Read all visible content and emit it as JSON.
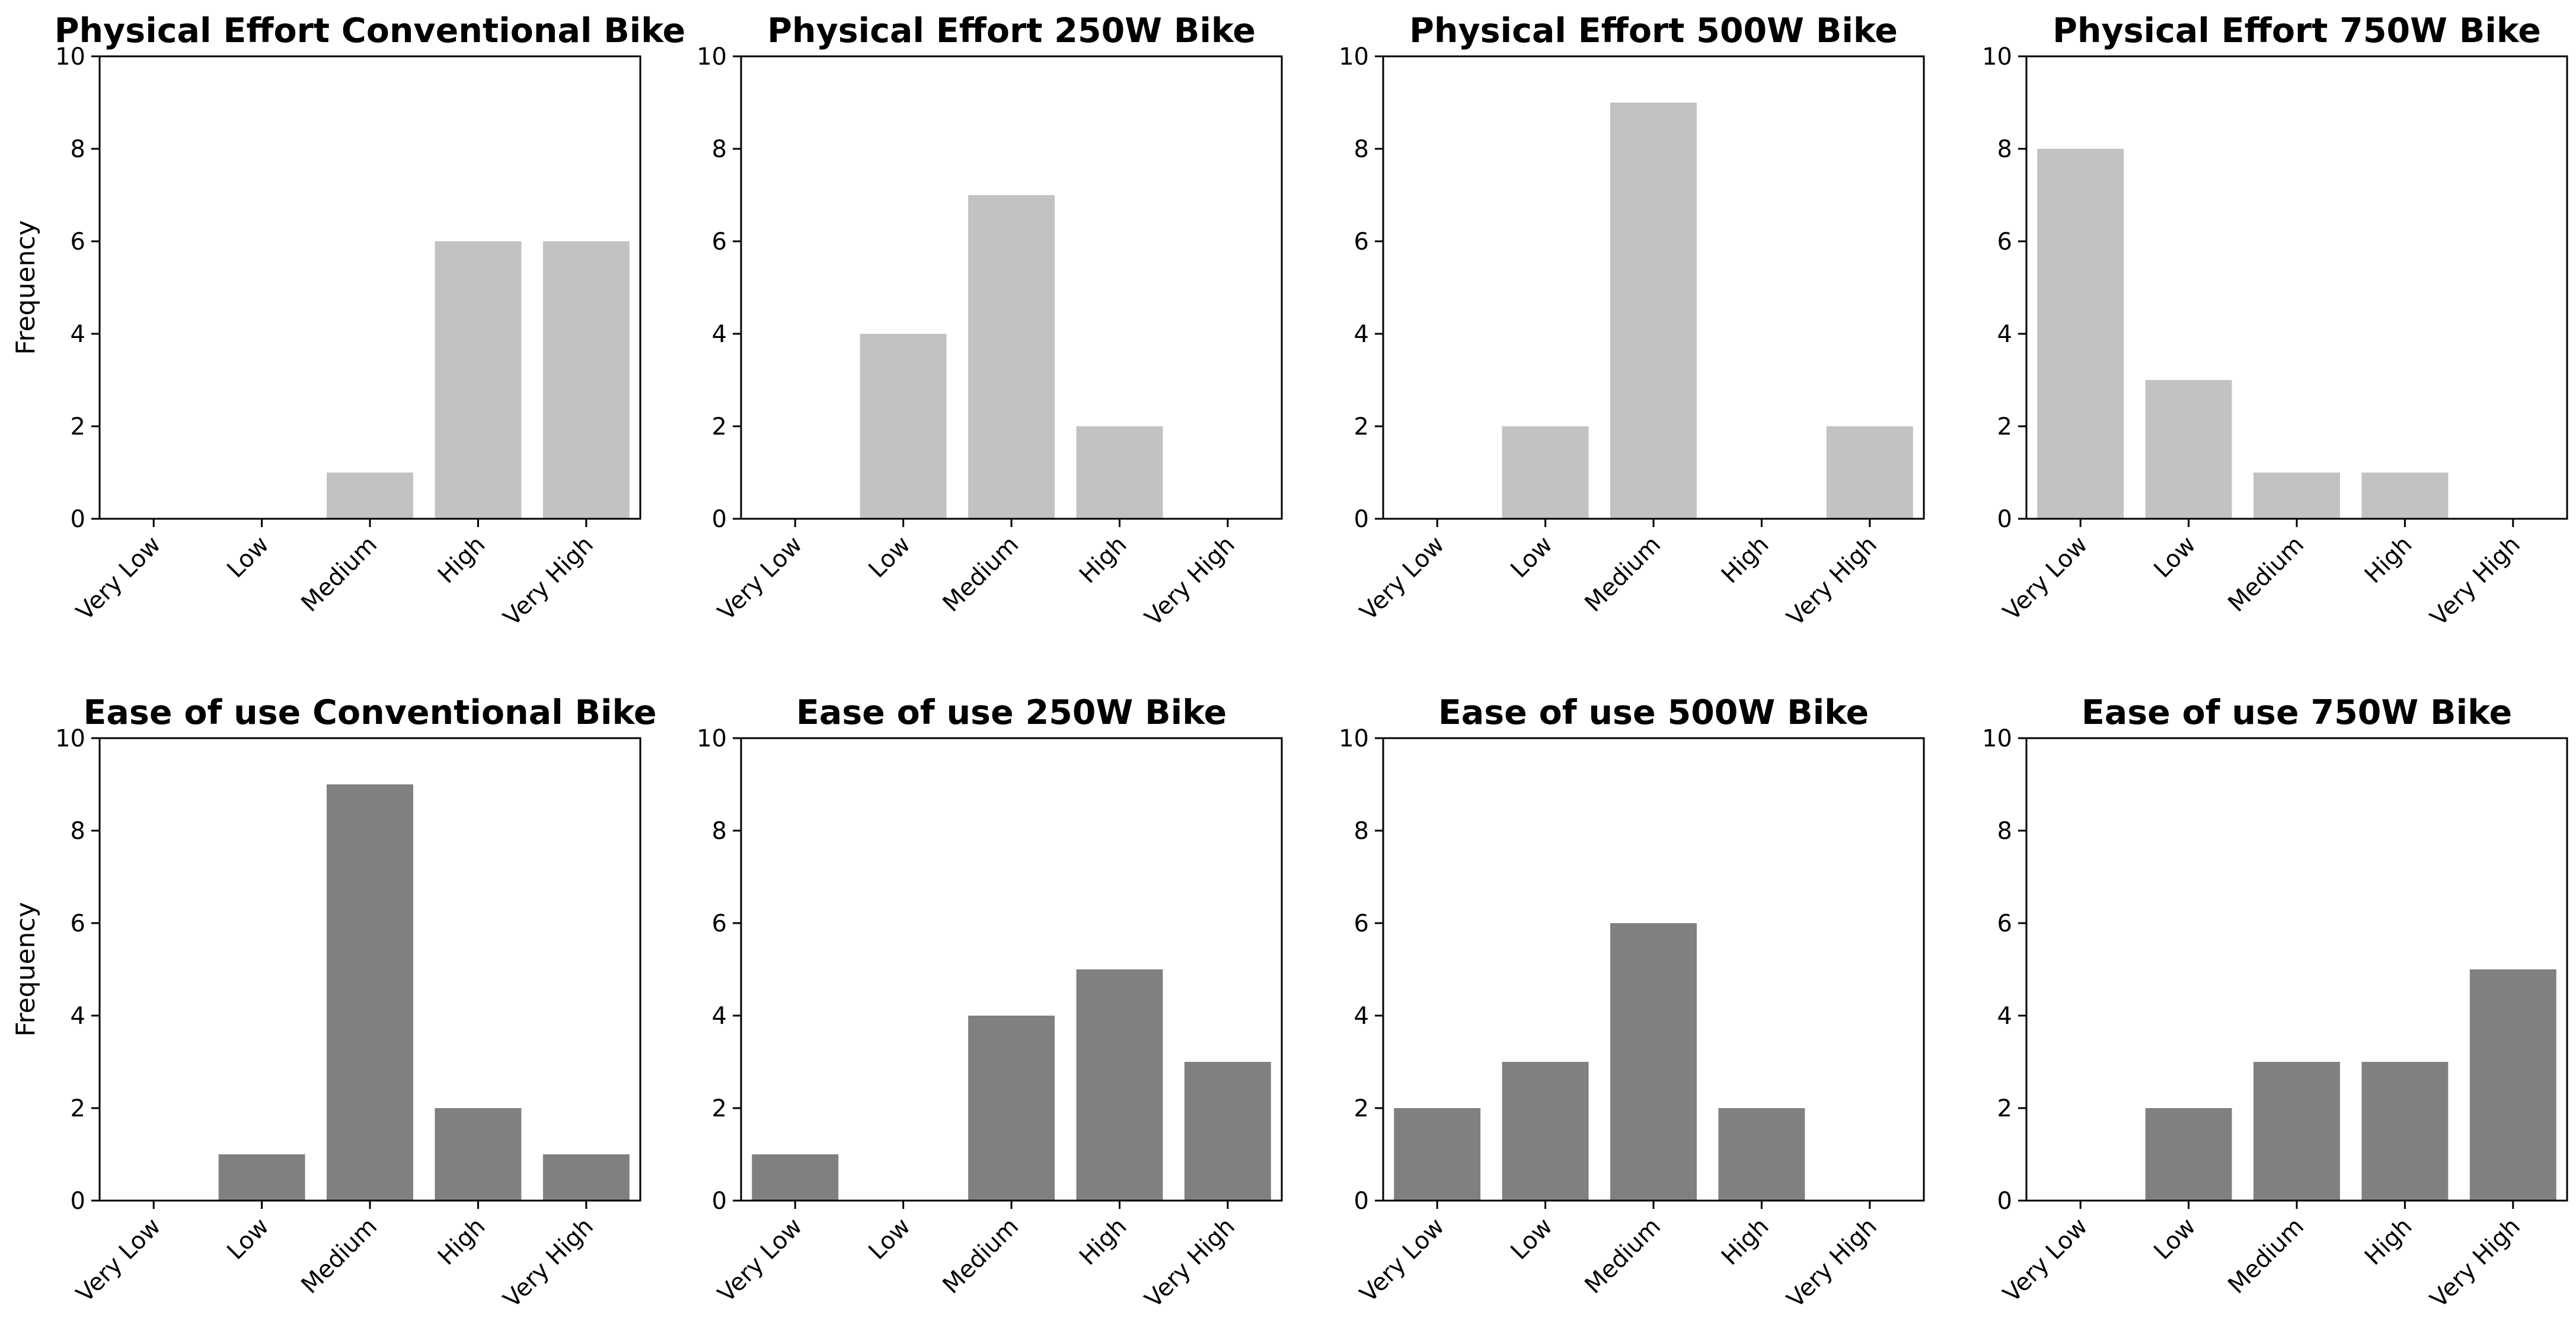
{
  "chart_data": [
    {
      "type": "bar",
      "title": "Physical Effort Conventional Bike",
      "categories": [
        "Very Low",
        "Low",
        "Medium",
        "High",
        "Very High"
      ],
      "values": [
        0,
        0,
        1,
        6,
        6
      ],
      "xlabel": "",
      "ylabel": "Frequency",
      "ylim": [
        0,
        10
      ],
      "yticks": [
        "0",
        "2",
        "4",
        "6",
        "8",
        "10"
      ],
      "bar_color": "#c2c2c2",
      "grid": false
    },
    {
      "type": "bar",
      "title": "Physical Effort 250W Bike",
      "categories": [
        "Very Low",
        "Low",
        "Medium",
        "High",
        "Very High"
      ],
      "values": [
        0,
        4,
        7,
        2,
        0
      ],
      "xlabel": "",
      "ylabel": "",
      "ylim": [
        0,
        10
      ],
      "yticks": [
        "0",
        "2",
        "4",
        "6",
        "8",
        "10"
      ],
      "bar_color": "#c2c2c2",
      "grid": false
    },
    {
      "type": "bar",
      "title": "Physical Effort 500W Bike",
      "categories": [
        "Very Low",
        "Low",
        "Medium",
        "High",
        "Very High"
      ],
      "values": [
        0,
        2,
        9,
        0,
        2
      ],
      "xlabel": "",
      "ylabel": "",
      "ylim": [
        0,
        10
      ],
      "yticks": [
        "0",
        "2",
        "4",
        "6",
        "8",
        "10"
      ],
      "bar_color": "#c2c2c2",
      "grid": false
    },
    {
      "type": "bar",
      "title": "Physical Effort 750W Bike",
      "categories": [
        "Very Low",
        "Low",
        "Medium",
        "High",
        "Very High"
      ],
      "values": [
        8,
        3,
        1,
        1,
        0
      ],
      "xlabel": "",
      "ylabel": "",
      "ylim": [
        0,
        10
      ],
      "yticks": [
        "0",
        "2",
        "4",
        "6",
        "8",
        "10"
      ],
      "bar_color": "#c2c2c2",
      "grid": false
    },
    {
      "type": "bar",
      "title": "Ease of use Conventional Bike",
      "categories": [
        "Very Low",
        "Low",
        "Medium",
        "High",
        "Very High"
      ],
      "values": [
        0,
        1,
        9,
        2,
        1
      ],
      "xlabel": "",
      "ylabel": "Frequency",
      "ylim": [
        0,
        10
      ],
      "yticks": [
        "0",
        "2",
        "4",
        "6",
        "8",
        "10"
      ],
      "bar_color": "#808080",
      "grid": false
    },
    {
      "type": "bar",
      "title": "Ease of use 250W Bike",
      "categories": [
        "Very Low",
        "Low",
        "Medium",
        "High",
        "Very High"
      ],
      "values": [
        1,
        0,
        4,
        5,
        3
      ],
      "xlabel": "",
      "ylabel": "",
      "ylim": [
        0,
        10
      ],
      "yticks": [
        "0",
        "2",
        "4",
        "6",
        "8",
        "10"
      ],
      "bar_color": "#808080",
      "grid": false
    },
    {
      "type": "bar",
      "title": "Ease of use 500W Bike",
      "categories": [
        "Very Low",
        "Low",
        "Medium",
        "High",
        "Very High"
      ],
      "values": [
        2,
        3,
        6,
        2,
        0
      ],
      "xlabel": "",
      "ylabel": "",
      "ylim": [
        0,
        10
      ],
      "yticks": [
        "0",
        "2",
        "4",
        "6",
        "8",
        "10"
      ],
      "bar_color": "#808080",
      "grid": false
    },
    {
      "type": "bar",
      "title": "Ease of use 750W Bike",
      "categories": [
        "Very Low",
        "Low",
        "Medium",
        "High",
        "Very High"
      ],
      "values": [
        0,
        2,
        3,
        3,
        5
      ],
      "xlabel": "",
      "ylabel": "",
      "ylim": [
        0,
        10
      ],
      "yticks": [
        "0",
        "2",
        "4",
        "6",
        "8",
        "10"
      ],
      "bar_color": "#808080",
      "grid": false
    }
  ]
}
